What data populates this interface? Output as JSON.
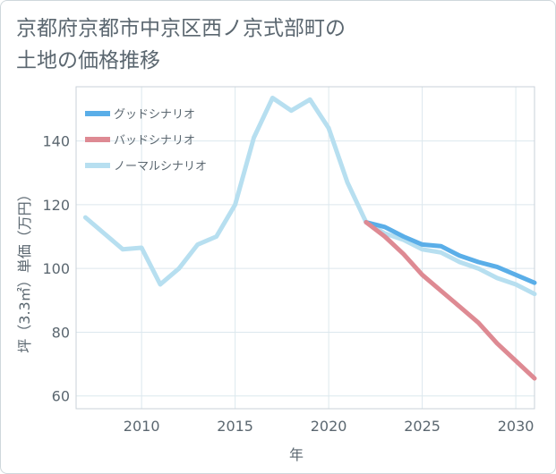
{
  "title_lines": [
    "京都府京都市中京区西ノ京式部町の",
    "土地の価格推移"
  ],
  "chart_data": {
    "type": "line",
    "title": "京都府京都市中京区西ノ京式部町の土地の価格推移",
    "xlabel": "年",
    "ylabel": "坪（3.3㎡）単価（万円）",
    "xlim": [
      2006.5,
      2031
    ],
    "ylim": [
      56,
      157
    ],
    "xticks": [
      2010,
      2015,
      2020,
      2025,
      2030
    ],
    "yticks": [
      60,
      80,
      100,
      120,
      140
    ],
    "grid": true,
    "legend_position": "top-left",
    "series": [
      {
        "name": "グッドシナリオ",
        "color": "#5aaee8",
        "x": [
          2022,
          2023,
          2024,
          2025,
          2026,
          2027,
          2028,
          2029,
          2030,
          2031
        ],
        "y": [
          114.5,
          113,
          110,
          107.5,
          107,
          104,
          102,
          100.5,
          98,
          95.5
        ]
      },
      {
        "name": "バッドシナリオ",
        "color": "#de8a93",
        "x": [
          2022,
          2023,
          2024,
          2025,
          2026,
          2027,
          2028,
          2029,
          2030,
          2031
        ],
        "y": [
          114.5,
          110,
          104.5,
          98,
          93,
          88,
          83,
          76.5,
          71,
          65.5
        ]
      },
      {
        "name": "ノーマルシナリオ",
        "color": "#b7dff0",
        "x": [
          2007,
          2008,
          2009,
          2010,
          2011,
          2012,
          2013,
          2014,
          2015,
          2016,
          2017,
          2018,
          2019,
          2020,
          2021,
          2022,
          2023,
          2024,
          2025,
          2026,
          2027,
          2028,
          2029,
          2030,
          2031
        ],
        "y": [
          116,
          111,
          106,
          106.5,
          95,
          100,
          107.5,
          110,
          120,
          141,
          153.5,
          149.5,
          153,
          144,
          127,
          114.5,
          111,
          109,
          106,
          105,
          102,
          100,
          97,
          95,
          92
        ]
      }
    ]
  }
}
